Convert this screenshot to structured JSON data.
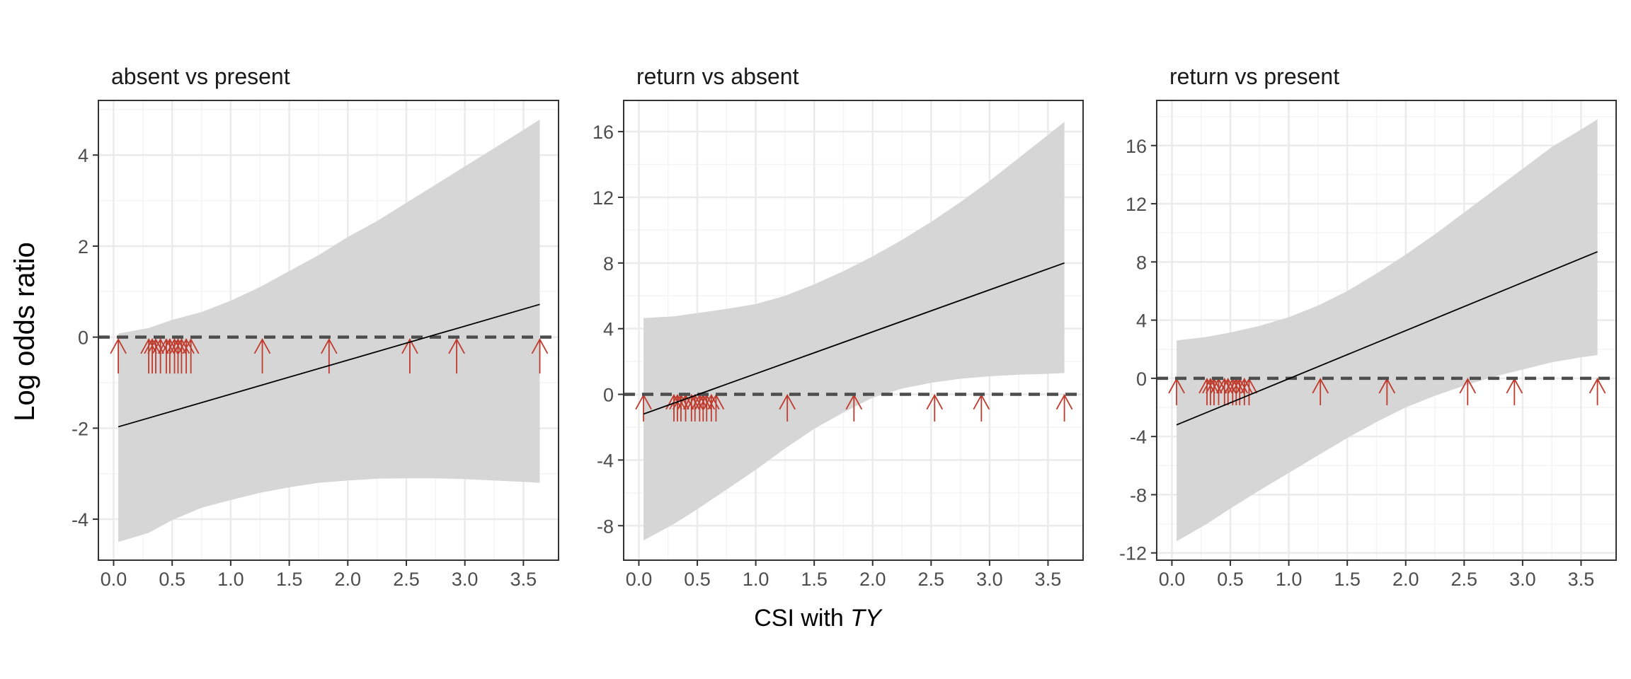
{
  "figure": {
    "ylabel": "Log odds ratio",
    "xlabel_prefix": "CSI with ",
    "xlabel_italic": "TY"
  },
  "colors": {
    "ribbon": "#d6d6d6",
    "fit_line": "#000000",
    "reference_line": "#4d4d4d",
    "rug_arrows": "#c0392b",
    "grid_major": "#ebebeb",
    "grid_minor": "#f4f4f4",
    "panel_border": "#333333"
  },
  "chart_data": [
    {
      "type": "line",
      "title": "absent vs present",
      "xlim": [
        -0.13,
        3.8
      ],
      "ylim": [
        -4.9,
        5.2
      ],
      "xticks": [
        "0.0",
        "0.5",
        "1.0",
        "1.5",
        "2.0",
        "2.5",
        "3.0",
        "3.5"
      ],
      "yticks": [
        "-4",
        "-2",
        "0",
        "2",
        "4"
      ],
      "grid": true,
      "fit": {
        "x": [
          0.04,
          3.64
        ],
        "y": [
          -1.97,
          0.72
        ]
      },
      "ci_band": {
        "x": [
          0.04,
          0.3,
          0.5,
          0.75,
          1.0,
          1.25,
          1.5,
          1.75,
          2.0,
          2.25,
          2.5,
          2.75,
          3.0,
          3.25,
          3.5,
          3.64
        ],
        "upper": [
          0.08,
          0.2,
          0.38,
          0.55,
          0.8,
          1.1,
          1.45,
          1.8,
          2.2,
          2.55,
          2.95,
          3.35,
          3.75,
          4.15,
          4.55,
          4.78
        ],
        "lower": [
          -4.5,
          -4.3,
          -4.02,
          -3.75,
          -3.58,
          -3.42,
          -3.3,
          -3.2,
          -3.15,
          -3.11,
          -3.1,
          -3.1,
          -3.12,
          -3.15,
          -3.18,
          -3.2
        ]
      },
      "reference_y": 0,
      "rug": {
        "x": [
          0.04,
          0.3,
          0.33,
          0.36,
          0.4,
          0.45,
          0.48,
          0.52,
          0.55,
          0.58,
          0.62,
          0.66,
          1.27,
          1.84,
          2.53,
          2.93,
          3.64
        ],
        "arrow_top": -0.05,
        "arrow_bottom": -0.8
      }
    },
    {
      "type": "line",
      "title": "return vs absent",
      "xlim": [
        -0.13,
        3.8
      ],
      "ylim": [
        -10.1,
        17.9
      ],
      "xticks": [
        "0.0",
        "0.5",
        "1.0",
        "1.5",
        "2.0",
        "2.5",
        "3.0",
        "3.5"
      ],
      "yticks": [
        "-8",
        "-4",
        "0",
        "4",
        "8",
        "12",
        "16"
      ],
      "grid": true,
      "fit": {
        "x": [
          0.04,
          3.64
        ],
        "y": [
          -1.2,
          8.0
        ]
      },
      "ci_band": {
        "x": [
          0.04,
          0.3,
          0.5,
          0.75,
          1.0,
          1.25,
          1.5,
          1.75,
          2.0,
          2.25,
          2.5,
          2.75,
          3.0,
          3.25,
          3.5,
          3.64
        ],
        "upper": [
          4.65,
          4.75,
          4.95,
          5.2,
          5.5,
          6.0,
          6.7,
          7.5,
          8.4,
          9.4,
          10.5,
          11.7,
          13.0,
          14.4,
          15.8,
          16.6
        ],
        "lower": [
          -8.9,
          -7.9,
          -7.0,
          -5.8,
          -4.6,
          -3.3,
          -2.1,
          -1.1,
          -0.2,
          0.35,
          0.7,
          0.95,
          1.1,
          1.2,
          1.25,
          1.3
        ]
      },
      "reference_y": 0,
      "rug": {
        "x": [
          0.04,
          0.3,
          0.33,
          0.36,
          0.4,
          0.45,
          0.48,
          0.52,
          0.55,
          0.58,
          0.62,
          0.66,
          1.27,
          1.84,
          2.53,
          2.93,
          3.64
        ],
        "arrow_top": -0.05,
        "arrow_bottom": -1.65
      }
    },
    {
      "type": "line",
      "title": "return vs present",
      "xlim": [
        -0.13,
        3.8
      ],
      "ylim": [
        -12.5,
        19.1
      ],
      "xticks": [
        "0.0",
        "0.5",
        "1.0",
        "1.5",
        "2.0",
        "2.5",
        "3.0",
        "3.5"
      ],
      "yticks": [
        "-12",
        "-8",
        "-4",
        "0",
        "4",
        "8",
        "12",
        "16"
      ],
      "grid": true,
      "fit": {
        "x": [
          0.04,
          3.64
        ],
        "y": [
          -3.2,
          8.7
        ]
      },
      "ci_band": {
        "x": [
          0.04,
          0.3,
          0.5,
          0.75,
          1.0,
          1.25,
          1.5,
          1.75,
          2.0,
          2.25,
          2.5,
          2.75,
          3.0,
          3.25,
          3.5,
          3.64
        ],
        "upper": [
          2.6,
          2.85,
          3.15,
          3.6,
          4.2,
          5.0,
          6.0,
          7.2,
          8.5,
          9.9,
          11.4,
          12.9,
          14.4,
          15.9,
          17.1,
          17.8
        ],
        "lower": [
          -11.2,
          -10.0,
          -8.95,
          -7.7,
          -6.5,
          -5.3,
          -4.1,
          -3.0,
          -2.0,
          -1.2,
          -0.5,
          0.1,
          0.6,
          1.1,
          1.45,
          1.6
        ]
      },
      "reference_y": 0,
      "rug": {
        "x": [
          0.04,
          0.3,
          0.33,
          0.36,
          0.4,
          0.45,
          0.48,
          0.52,
          0.55,
          0.58,
          0.62,
          0.66,
          1.27,
          1.84,
          2.53,
          2.93,
          3.64
        ],
        "arrow_top": -0.05,
        "arrow_bottom": -1.85
      }
    }
  ]
}
